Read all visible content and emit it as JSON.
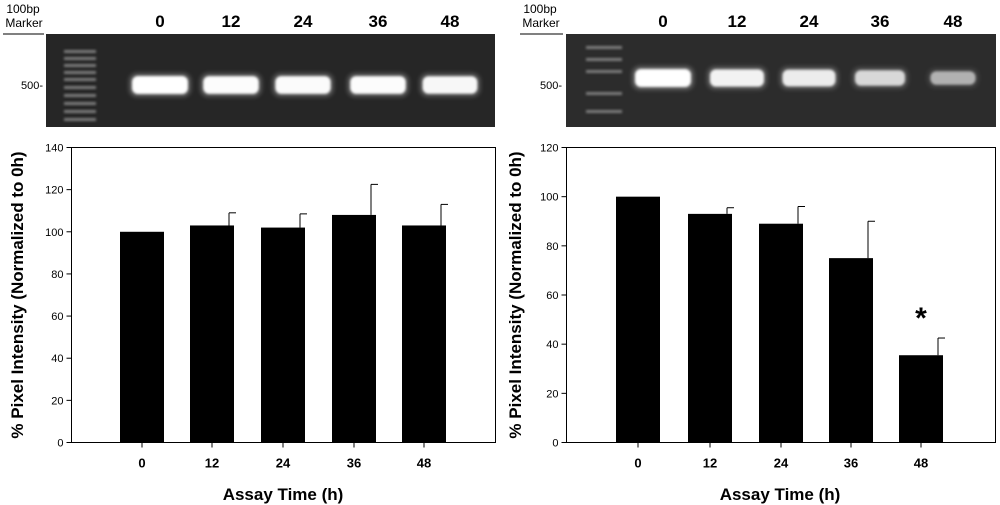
{
  "gels": [
    {
      "marker_label_line1": "100bp",
      "marker_label_line2": "Marker",
      "size_label": "500-",
      "lane_labels": [
        "0",
        "12",
        "24",
        "36",
        "48"
      ],
      "band_intensities": [
        1.0,
        0.98,
        0.97,
        0.98,
        0.94
      ]
    },
    {
      "marker_label_line1": "100bp",
      "marker_label_line2": "Marker",
      "size_label": "500-",
      "lane_labels": [
        "0",
        "12",
        "24",
        "36",
        "48"
      ],
      "band_intensities": [
        1.0,
        0.9,
        0.85,
        0.7,
        0.45
      ]
    }
  ],
  "chart_data": [
    {
      "type": "bar",
      "categories": [
        "0",
        "12",
        "24",
        "36",
        "48"
      ],
      "values": [
        100,
        103,
        102,
        108,
        103
      ],
      "errors": [
        0,
        6,
        6.5,
        14.5,
        10
      ],
      "ylabel": "% Pixel Intensity (Normalized to 0h)",
      "xlabel": "Assay Time (h)",
      "ylim": [
        0,
        140
      ],
      "yticks": [
        0,
        20,
        40,
        60,
        80,
        100,
        120,
        140
      ],
      "significance": [],
      "bar_color": "#000000",
      "grid": false
    },
    {
      "type": "bar",
      "categories": [
        "0",
        "12",
        "24",
        "36",
        "48"
      ],
      "values": [
        100,
        93,
        89,
        75,
        35.5
      ],
      "errors": [
        0,
        2.5,
        7,
        15,
        7
      ],
      "ylabel": "% Pixel Intensity (Normalized to 0h)",
      "xlabel": "Assay Time (h)",
      "ylim": [
        0,
        120
      ],
      "yticks": [
        0,
        20,
        40,
        60,
        80,
        100,
        120
      ],
      "significance": [
        {
          "category": "48",
          "mark": "*"
        }
      ],
      "bar_color": "#000000",
      "grid": false
    }
  ]
}
